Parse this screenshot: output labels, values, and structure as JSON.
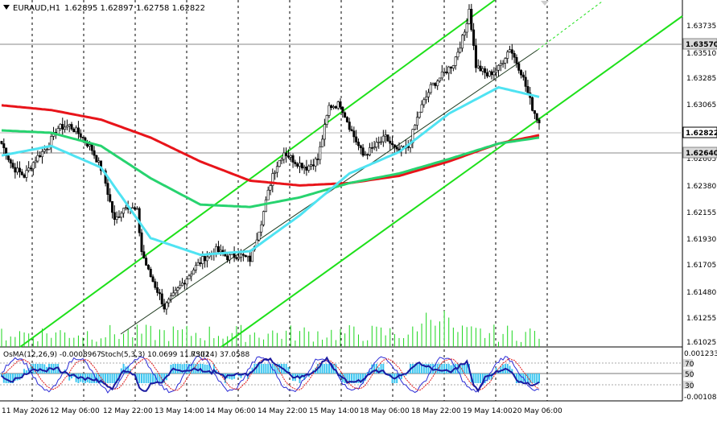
{
  "header": {
    "symbol": "EURAUD,H1",
    "ohlc": "1.62895 1.62897 1.62758 1.62822",
    "menu_icon": "triangle-down-icon"
  },
  "price_axis": {
    "labels": [
      "1.63735",
      "1.63510",
      "1.63285",
      "1.63065",
      "1.62605",
      "1.62380",
      "1.62155",
      "1.61930",
      "1.61705",
      "1.61480",
      "1.61255",
      "1.61025"
    ],
    "tags": {
      "level_top": "1.63570",
      "current": "1.62822",
      "level_bottom": "1.62640"
    }
  },
  "time_axis": {
    "labels": [
      "11 May 2026",
      "12 May 06:00",
      "12 May 22:00",
      "13 May 14:00",
      "14 May 06:00",
      "14 May 22:00",
      "15 May 14:00",
      "18 May 06:00",
      "18 May 22:00",
      "19 May 14:00",
      "20 May 06:00"
    ]
  },
  "indicator": {
    "osma_label": "OsMA(12,26,9) -0.0008967",
    "stoch_label": "Stoch(5,3,3) 10.0699 11.7302",
    "rsi_label": "RSI(14) 37.0588",
    "axis_labels": [
      "0.001233",
      "70",
      "50",
      "30",
      "-0.00108"
    ],
    "level_values": [
      70,
      50,
      30
    ]
  },
  "colors": {
    "background": "#ffffff",
    "bull": "#000000",
    "bear": "#000000",
    "ma_red": "#e8141a",
    "ma_green": "#27d36f",
    "ma_cyan": "#4fe3f2",
    "channel": "#1ee01a",
    "grid": "#000000",
    "volume": "#19d61b",
    "osma": "#3cc6f0",
    "stoch_main": "#2b2bd6",
    "stoch_signal": "#e01a1a",
    "rsi": "#1a1aa0"
  },
  "chart_data": {
    "type": "candlestick",
    "title": "EURAUD,H1",
    "ylim": [
      1.6095,
      1.6385
    ],
    "x_ticks": [
      "11 May 2026",
      "12 May 06:00",
      "12 May 22:00",
      "13 May 14:00",
      "14 May 06:00",
      "14 May 22:00",
      "15 May 14:00",
      "18 May 06:00",
      "18 May 22:00",
      "19 May 14:00",
      "20 May 06:00"
    ],
    "last_close": 1.62822,
    "horizontal_levels": [
      1.6357,
      1.6264
    ],
    "close_path": [
      [
        0,
        1.6265
      ],
      [
        5,
        1.6245
      ],
      [
        10,
        1.6238
      ],
      [
        15,
        1.6252
      ],
      [
        20,
        1.6262
      ],
      [
        25,
        1.6278
      ],
      [
        30,
        1.628
      ],
      [
        35,
        1.6272
      ],
      [
        40,
        1.626
      ],
      [
        45,
        1.624
      ],
      [
        50,
        1.62
      ],
      [
        55,
        1.6214
      ],
      [
        60,
        1.6208
      ],
      [
        62,
        1.6175
      ],
      [
        65,
        1.6158
      ],
      [
        70,
        1.6138
      ],
      [
        72,
        1.6128
      ],
      [
        75,
        1.6135
      ],
      [
        80,
        1.6148
      ],
      [
        85,
        1.616
      ],
      [
        90,
        1.617
      ],
      [
        95,
        1.6176
      ],
      [
        100,
        1.617
      ],
      [
        105,
        1.6172
      ],
      [
        110,
        1.6168
      ],
      [
        115,
        1.62
      ],
      [
        120,
        1.624
      ],
      [
        125,
        1.6258
      ],
      [
        130,
        1.625
      ],
      [
        135,
        1.6245
      ],
      [
        140,
        1.6252
      ],
      [
        145,
        1.6296
      ],
      [
        150,
        1.6298
      ],
      [
        155,
        1.6275
      ],
      [
        160,
        1.6255
      ],
      [
        165,
        1.6262
      ],
      [
        170,
        1.627
      ],
      [
        175,
        1.6258
      ],
      [
        180,
        1.6262
      ],
      [
        185,
        1.6292
      ],
      [
        190,
        1.6312
      ],
      [
        195,
        1.6322
      ],
      [
        200,
        1.6332
      ],
      [
        205,
        1.6358
      ],
      [
        207,
        1.6378
      ],
      [
        210,
        1.633
      ],
      [
        215,
        1.6322
      ],
      [
        220,
        1.6328
      ],
      [
        225,
        1.6345
      ],
      [
        230,
        1.6325
      ],
      [
        235,
        1.6295
      ],
      [
        238,
        1.62822
      ]
    ],
    "series": [
      {
        "name": "MA red",
        "values": [
          1.6297,
          1.6293,
          1.6285,
          1.627,
          1.625,
          1.6234,
          1.623,
          1.6232,
          1.6238,
          1.625,
          1.6265,
          1.6272
        ]
      },
      {
        "name": "MA green",
        "values": [
          1.6276,
          1.6274,
          1.6263,
          1.6236,
          1.6214,
          1.6212,
          1.622,
          1.6232,
          1.624,
          1.6252,
          1.6265,
          1.627
        ]
      },
      {
        "name": "MA cyan",
        "values": [
          1.6255,
          1.6263,
          1.6245,
          1.6186,
          1.6172,
          1.6175,
          1.6205,
          1.624,
          1.6258,
          1.629,
          1.6312,
          1.6304
        ]
      }
    ],
    "series_x": [
      0,
      22,
      44,
      66,
      88,
      110,
      132,
      154,
      176,
      198,
      220,
      238
    ],
    "volume": [
      4,
      6,
      5,
      3,
      7,
      8,
      5,
      4,
      6,
      9,
      5,
      7,
      6,
      4,
      5,
      8,
      9,
      6,
      5,
      7
    ]
  }
}
